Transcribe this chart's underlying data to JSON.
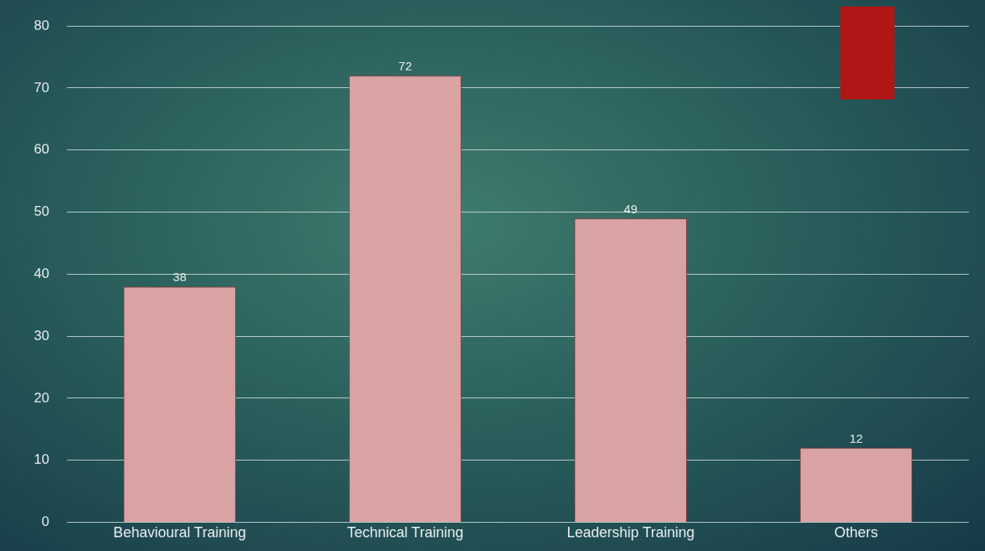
{
  "chart_data": {
    "type": "bar",
    "categories": [
      "Behavioural Training",
      "Technical Training",
      "Leadership Training",
      "Others"
    ],
    "values": [
      38,
      72,
      49,
      12
    ],
    "color": "#d9a3a3",
    "ylim": [
      0,
      80
    ],
    "yticks": [
      0,
      10,
      20,
      30,
      40,
      50,
      60,
      70,
      80
    ],
    "grid": "y",
    "data_labels": true,
    "legend": false
  }
}
